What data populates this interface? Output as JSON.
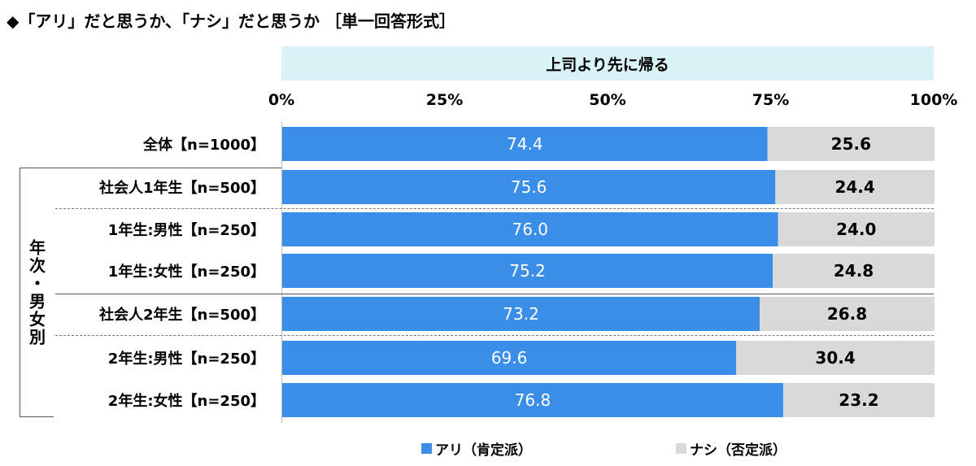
{
  "title": "◆「アリ」だと思うか、「ナシ」だと思うか ［単一回答形式］",
  "chart_data": {
    "type": "bar",
    "orientation": "horizontal",
    "stacked": true,
    "subtitle": "上司より先に帰る",
    "x_ticks": [
      "0%",
      "25%",
      "50%",
      "75%",
      "100%"
    ],
    "xlim": [
      0,
      100
    ],
    "categories": [
      "全体【n=1000】",
      "社会人1年生【n=500】",
      "1年生:男性【n=250】",
      "1年生:女性【n=250】",
      "社会人2年生【n=500】",
      "2年生:男性【n=250】",
      "2年生:女性【n=250】"
    ],
    "group_label": "年次・男女別",
    "series": [
      {
        "name": "アリ（肯定派）",
        "color": "#3b8ee8",
        "values": [
          74.4,
          75.6,
          76.0,
          75.2,
          73.2,
          69.6,
          76.8
        ],
        "labels": [
          "74.4",
          "75.6",
          "76.0",
          "75.2",
          "73.2",
          "69.6",
          "76.8"
        ]
      },
      {
        "name": "ナシ（否定派）",
        "color": "#d9d9d9",
        "values": [
          25.6,
          24.4,
          24.0,
          24.8,
          26.8,
          30.4,
          23.2
        ],
        "labels": [
          "25.6",
          "24.4",
          "24.0",
          "24.8",
          "26.8",
          "30.4",
          "23.2"
        ]
      }
    ],
    "legend_position": "bottom"
  }
}
